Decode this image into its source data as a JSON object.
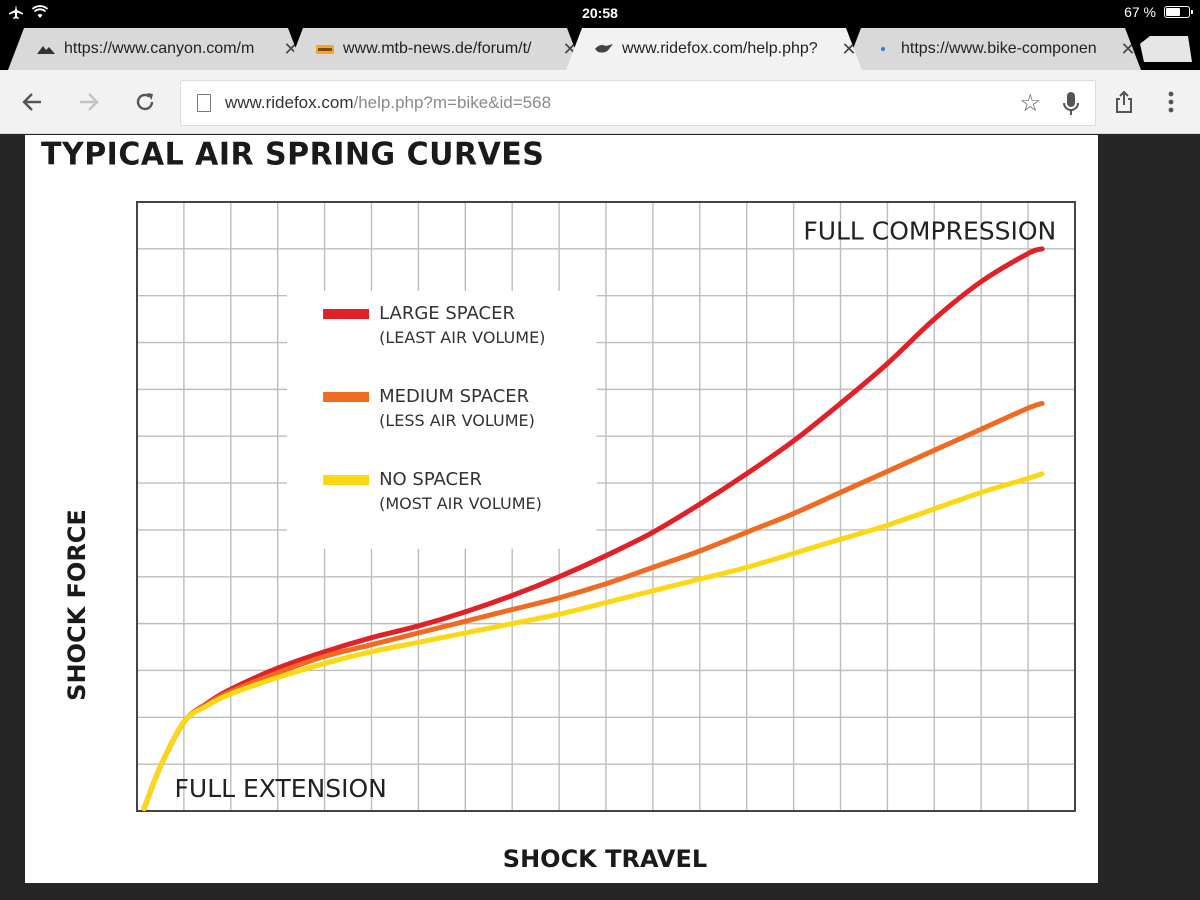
{
  "status_bar": {
    "time": "20:58",
    "battery_text": "67 %",
    "battery_level": 0.67
  },
  "tabs": [
    {
      "title": "https://www.canyon.com/m",
      "favicon": "canyon-logo-icon",
      "active": false
    },
    {
      "title": "www.mtb-news.de/forum/t/",
      "favicon": "mtb-news-logo-icon",
      "active": false
    },
    {
      "title": "www.ridefox.com/help.php?",
      "favicon": "fox-logo-icon",
      "active": true
    },
    {
      "title": "https://www.bike-componen",
      "favicon": "bike-components-logo-icon",
      "active": false
    }
  ],
  "toolbar": {
    "url_domain": "www.ridefox.com",
    "url_path": "/help.php?m=bike&id=568"
  },
  "chart_data": {
    "type": "line",
    "title": "TYPICAL AIR SPRING CURVES",
    "xlabel": "SHOCK TRAVEL",
    "ylabel": "SHOCK FORCE",
    "xlim": [
      0,
      20
    ],
    "ylim": [
      0,
      13
    ],
    "grid": true,
    "annotations": [
      {
        "text": "FULL COMPRESSION",
        "x": 19.6,
        "y": 12.2,
        "anchor": "end"
      },
      {
        "text": "FULL EXTENSION",
        "x": 0.8,
        "y": 0.3,
        "anchor": "start"
      }
    ],
    "legend": {
      "placement": "upper-left",
      "entries": [
        {
          "name": "LARGE SPACER",
          "note": "(LEAST AIR VOLUME)",
          "color": "#e02128"
        },
        {
          "name": "MEDIUM SPACER",
          "note": "(LESS AIR VOLUME)",
          "color": "#ef6b22"
        },
        {
          "name": "NO SPACER",
          "note": "(MOST AIR VOLUME)",
          "color": "#fad914"
        }
      ]
    },
    "x": [
      0.15,
      0.5,
      1,
      1.5,
      2,
      3,
      4,
      5,
      6,
      7,
      8,
      9,
      10,
      11,
      12,
      13,
      14,
      15,
      16,
      17,
      18,
      19,
      19.3
    ],
    "series": [
      {
        "name": "LARGE SPACER",
        "color": "#e02128",
        "values": [
          0.05,
          0.95,
          1.9,
          2.3,
          2.6,
          3.05,
          3.4,
          3.7,
          3.95,
          4.25,
          4.6,
          5.0,
          5.45,
          5.95,
          6.55,
          7.2,
          7.9,
          8.7,
          9.55,
          10.5,
          11.3,
          11.9,
          12.0
        ]
      },
      {
        "name": "MEDIUM SPACER",
        "color": "#ef6b22",
        "values": [
          0.05,
          0.95,
          1.9,
          2.28,
          2.55,
          2.95,
          3.3,
          3.55,
          3.8,
          4.05,
          4.3,
          4.55,
          4.85,
          5.2,
          5.55,
          5.95,
          6.35,
          6.8,
          7.25,
          7.7,
          8.15,
          8.6,
          8.7
        ]
      },
      {
        "name": "NO SPACER",
        "color": "#fad914",
        "values": [
          0.05,
          0.95,
          1.9,
          2.25,
          2.5,
          2.85,
          3.15,
          3.4,
          3.6,
          3.8,
          4.0,
          4.2,
          4.45,
          4.7,
          4.95,
          5.2,
          5.5,
          5.8,
          6.1,
          6.45,
          6.8,
          7.1,
          7.2
        ]
      }
    ]
  }
}
